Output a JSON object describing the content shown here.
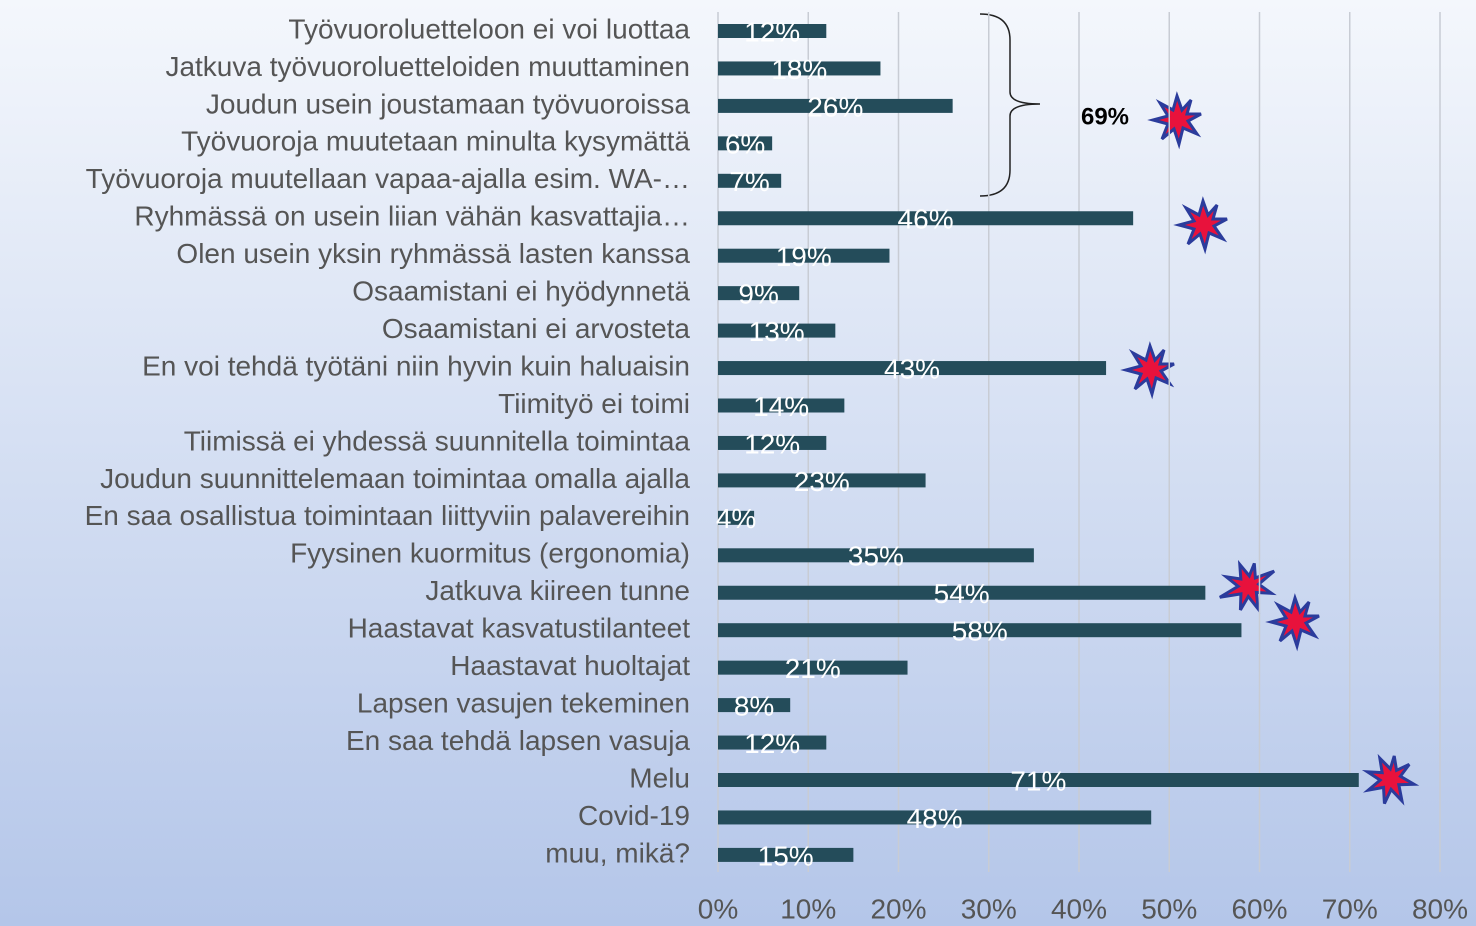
{
  "chart_data": {
    "type": "bar",
    "orientation": "horizontal",
    "categories": [
      "Työvuoroluetteloon ei voi luottaa",
      "Jatkuva työvuoroluetteloiden muuttaminen",
      "Joudun usein joustamaan työvuoroissa",
      "Työvuoroja muutetaan minulta kysymättä",
      "Työvuoroja muutellaan vapaa-ajalla esim. WA-…",
      "Ryhmässä on usein liian vähän kasvattajia…",
      "Olen usein yksin ryhmässä lasten kanssa",
      "Osaamistani ei hyödynnetä",
      "Osaamistani ei arvosteta",
      "En voi tehdä työtäni niin hyvin kuin haluaisin",
      "Tiimityö ei toimi",
      "Tiimissä ei yhdessä suunnitella toimintaa",
      "Joudun suunnittelemaan toimintaa omalla ajalla",
      "En saa osallistua toimintaan liittyviin palavereihin",
      "Fyysinen kuormitus (ergonomia)",
      "Jatkuva kiireen tunne",
      "Haastavat kasvatustilanteet",
      "Haastavat huoltajat",
      "Lapsen vasujen tekeminen",
      "En saa tehdä lapsen vasuja",
      "Melu",
      "Covid-19",
      "muu, mikä?"
    ],
    "values": [
      12,
      18,
      26,
      6,
      7,
      46,
      19,
      9,
      13,
      43,
      14,
      12,
      23,
      4,
      35,
      54,
      58,
      21,
      8,
      12,
      71,
      48,
      15
    ],
    "value_labels": [
      "12%",
      "18%",
      "26%",
      "6%",
      "7%",
      "46%",
      "19%",
      "9%",
      "13%",
      "43%",
      "14%",
      "12%",
      "23%",
      "4%",
      "35%",
      "54%",
      "58%",
      "21%",
      "8%",
      "12%",
      "71%",
      "48%",
      "15%"
    ],
    "color": "#244c5a",
    "xlim": [
      0,
      80
    ],
    "xticks": [
      {
        "value": 0,
        "label": "0%"
      },
      {
        "value": 10,
        "label": "10%"
      },
      {
        "value": 20,
        "label": "20%"
      },
      {
        "value": 30,
        "label": "30%"
      },
      {
        "value": 40,
        "label": "40%"
      },
      {
        "value": 50,
        "label": "50%"
      },
      {
        "value": 60,
        "label": "60%"
      },
      {
        "value": 70,
        "label": "70%"
      },
      {
        "value": 80,
        "label": "80%"
      }
    ],
    "grid": true,
    "annotation": "69%"
  }
}
